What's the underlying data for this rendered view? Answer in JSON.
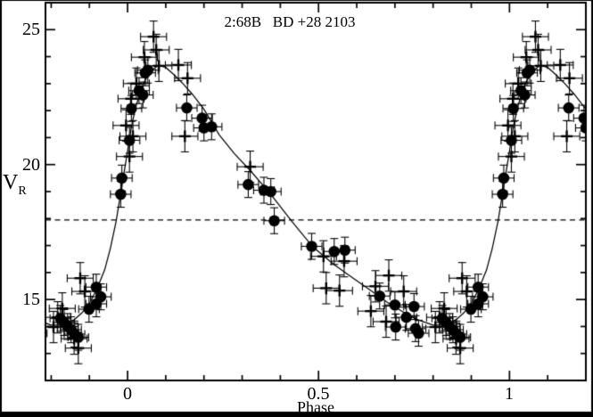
{
  "figure": {
    "kind": "phase-folded radial velocity light curve",
    "background_color": "#ffffff",
    "foreground_color": "#000000"
  },
  "chart_data": {
    "type": "scatter",
    "title": "2:68B   BD +28 2103",
    "xlabel": "Phase",
    "ylabel": "V_R",
    "ylabel_main": "V",
    "ylabel_sub": "R",
    "xlim": [
      -0.215,
      1.2
    ],
    "ylim": [
      12,
      26
    ],
    "x_major_ticks": [
      0,
      0.5,
      1
    ],
    "x_major_tick_labels": [
      "0",
      "0.5",
      "1"
    ],
    "x_minor_ticks": [
      -0.2,
      -0.1,
      0.1,
      0.2,
      0.3,
      0.4,
      0.6,
      0.7,
      0.8,
      0.9,
      1.1,
      1.2
    ],
    "y_major_ticks": [
      15,
      20,
      25
    ],
    "y_major_tick_labels": [
      "15",
      "20",
      "25"
    ],
    "y_minor_ticks": [
      13,
      14,
      16,
      17,
      18,
      19,
      21,
      22,
      23,
      24
    ],
    "grid": false,
    "legend": false,
    "reference_line": {
      "y": 17.95,
      "style": "dashed"
    },
    "phase_duplication": true,
    "series": [
      {
        "name": "filled-circles",
        "marker": "circle",
        "color": "#000000",
        "err_x": 0.027,
        "err_y": 0.48,
        "points": [
          [
            0.005,
            20.9
          ],
          [
            0.01,
            22.08
          ],
          [
            0.03,
            22.74
          ],
          [
            0.04,
            22.58
          ],
          [
            0.046,
            23.4
          ],
          [
            0.053,
            23.5
          ],
          [
            0.155,
            22.1
          ],
          [
            0.195,
            21.72
          ],
          [
            0.2,
            21.36
          ],
          [
            0.22,
            21.4
          ],
          [
            0.316,
            19.26
          ],
          [
            0.357,
            19.05
          ],
          [
            0.375,
            19.0
          ],
          [
            0.384,
            17.92
          ],
          [
            0.482,
            16.97
          ],
          [
            0.541,
            16.78
          ],
          [
            0.569,
            16.83
          ],
          [
            0.66,
            15.13
          ],
          [
            0.7,
            14.8
          ],
          [
            0.702,
            13.98
          ],
          [
            0.73,
            14.34
          ],
          [
            0.75,
            14.74
          ],
          [
            0.754,
            13.92
          ],
          [
            0.762,
            13.75
          ],
          [
            0.824,
            14.3
          ],
          [
            0.834,
            14.15
          ],
          [
            0.843,
            14.0
          ],
          [
            0.852,
            13.88
          ],
          [
            0.861,
            13.72
          ],
          [
            0.871,
            13.6
          ],
          [
            0.899,
            14.64
          ],
          [
            0.918,
            14.84
          ],
          [
            0.918,
            15.46
          ],
          [
            0.93,
            15.1
          ],
          [
            0.982,
            18.9
          ],
          [
            0.985,
            19.5
          ]
        ]
      },
      {
        "name": "plus-crosses",
        "marker": "plus",
        "color": "#000000",
        "err_x": 0.034,
        "err_y": 0.58,
        "points": [
          [
            0.005,
            20.3
          ],
          [
            0.009,
            22.44
          ],
          [
            0.014,
            21.05
          ],
          [
            0.023,
            23.0
          ],
          [
            0.044,
            23.98
          ],
          [
            0.068,
            24.74
          ],
          [
            0.075,
            24.25
          ],
          [
            0.082,
            23.66
          ],
          [
            0.133,
            23.69
          ],
          [
            0.15,
            21.05
          ],
          [
            0.157,
            23.2
          ],
          [
            0.321,
            19.92
          ],
          [
            0.513,
            16.6
          ],
          [
            0.52,
            15.42
          ],
          [
            0.555,
            15.33
          ],
          [
            0.567,
            16.42
          ],
          [
            0.637,
            14.57
          ],
          [
            0.649,
            15.49
          ],
          [
            0.677,
            14.18
          ],
          [
            0.684,
            15.89
          ],
          [
            0.723,
            15.3
          ],
          [
            0.806,
            13.98
          ],
          [
            0.817,
            14.34
          ],
          [
            0.829,
            14.67
          ],
          [
            0.86,
            13.55
          ],
          [
            0.871,
            13.2
          ],
          [
            0.876,
            15.79
          ],
          [
            0.888,
            15.3
          ],
          [
            0.996,
            21.45
          ]
        ]
      }
    ],
    "fit_curve": {
      "name": "fitted-curve",
      "points": [
        [
          0.0,
          20.5
        ],
        [
          0.01,
          21.4
        ],
        [
          0.02,
          22.05
        ],
        [
          0.03,
          22.55
        ],
        [
          0.045,
          23.1
        ],
        [
          0.06,
          23.45
        ],
        [
          0.08,
          23.68
        ],
        [
          0.1,
          23.6
        ],
        [
          0.12,
          23.35
        ],
        [
          0.145,
          23.0
        ],
        [
          0.17,
          22.6
        ],
        [
          0.2,
          22.05
        ],
        [
          0.24,
          21.1
        ],
        [
          0.28,
          20.4
        ],
        [
          0.32,
          19.8
        ],
        [
          0.375,
          18.9
        ],
        [
          0.43,
          17.9
        ],
        [
          0.485,
          16.95
        ],
        [
          0.54,
          16.3
        ],
        [
          0.585,
          15.85
        ],
        [
          0.63,
          15.4
        ],
        [
          0.68,
          14.9
        ],
        [
          0.72,
          14.55
        ],
        [
          0.76,
          14.25
        ],
        [
          0.8,
          14.05
        ],
        [
          0.83,
          14.05
        ],
        [
          0.86,
          14.25
        ],
        [
          0.88,
          14.5
        ],
        [
          0.9,
          14.85
        ],
        [
          0.92,
          15.4
        ],
        [
          0.94,
          16.1
        ],
        [
          0.955,
          16.9
        ],
        [
          0.97,
          17.9
        ],
        [
          0.985,
          19.2
        ],
        [
          1.0,
          20.5
        ]
      ]
    }
  }
}
